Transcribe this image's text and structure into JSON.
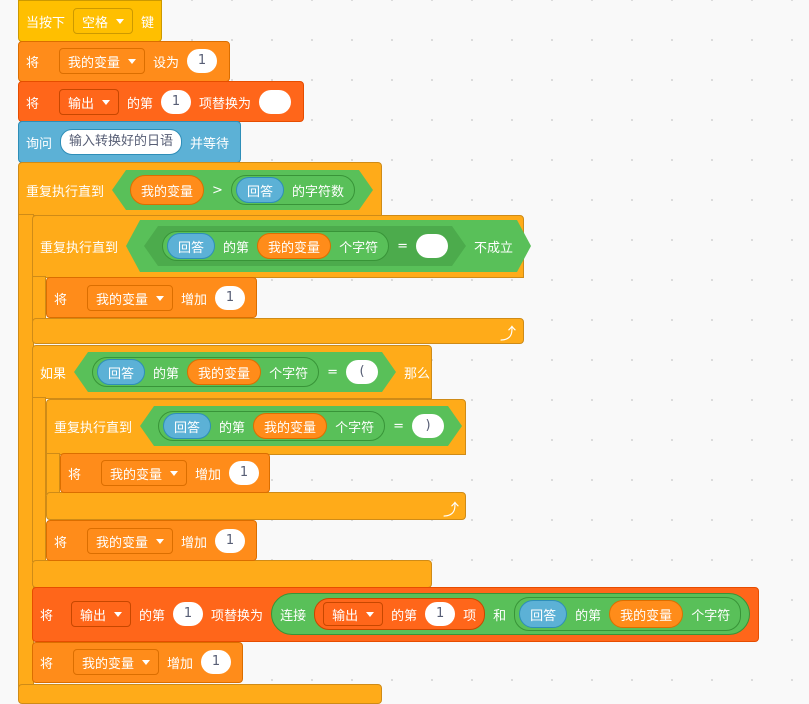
{
  "colors": {
    "event": "#ffbf00",
    "variables": "#ff8c1a",
    "lists": "#ff661a",
    "sensing": "#5cb1d6",
    "control": "#ffab19",
    "operators": "#59c059"
  },
  "b1": {
    "label": "当按下",
    "key": "空格",
    "suffix": "键"
  },
  "b2": {
    "label": "将",
    "var": "我的变量",
    "mid": "设为",
    "value": "1"
  },
  "b3": {
    "label": "将",
    "list": "输出",
    "mid": "的第",
    "index": "1",
    "suffix": "项替换为",
    "value": ""
  },
  "b4": {
    "label": "询问",
    "prompt": "输入转换好的日语",
    "suffix": "并等待"
  },
  "b5": {
    "label": "重复执行直到",
    "left": "我的变量",
    "op": ">",
    "answer": "回答",
    "suffix": "的字符数"
  },
  "b6": {
    "label": "重复执行直到",
    "answer": "回答",
    "of": "的第",
    "var": "我的变量",
    "char": "个字符",
    "eq": "=",
    "value": "",
    "not": "不成立"
  },
  "b7": {
    "label": "将",
    "var": "我的变量",
    "mid": "增加",
    "value": "1"
  },
  "b8": {
    "label": "如果",
    "answer": "回答",
    "of": "的第",
    "var": "我的变量",
    "char": "个字符",
    "eq": "=",
    "value": "(",
    "then": "那么"
  },
  "b9": {
    "label": "重复执行直到",
    "answer": "回答",
    "of": "的第",
    "var": "我的变量",
    "char": "个字符",
    "eq": "=",
    "value": ")"
  },
  "b10": {
    "label": "将",
    "var": "我的变量",
    "mid": "增加",
    "value": "1"
  },
  "b11": {
    "label": "将",
    "var": "我的变量",
    "mid": "增加",
    "value": "1"
  },
  "b12": {
    "label": "将",
    "list": "输出",
    "of": "的第",
    "index": "1",
    "replace": "项替换为",
    "join": "连接",
    "list2": "输出",
    "of2": "的第",
    "index2": "1",
    "item": "项",
    "and": "和",
    "answer": "回答",
    "of3": "的第",
    "var": "我的变量",
    "char": "个字符"
  },
  "b13": {
    "label": "将",
    "var": "我的变量",
    "mid": "增加",
    "value": "1"
  }
}
